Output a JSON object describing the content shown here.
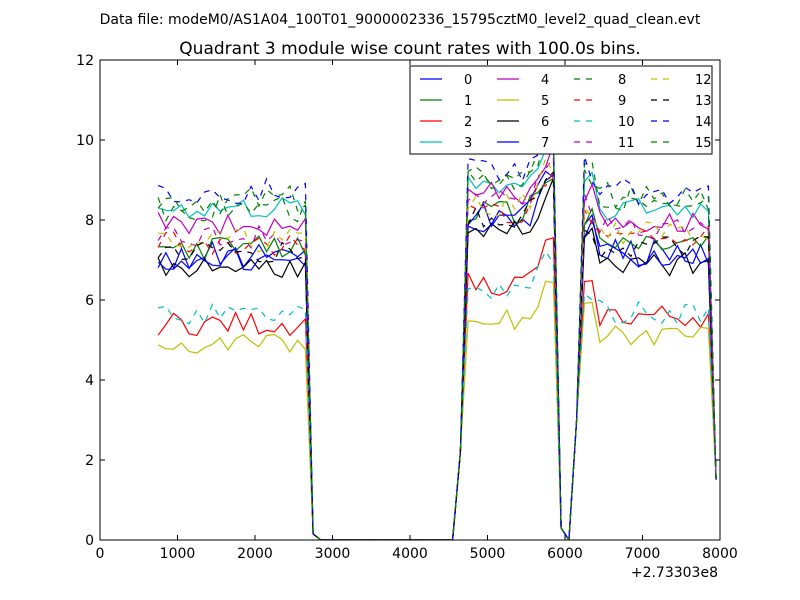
{
  "chart_data": {
    "type": "line",
    "suptitle": "Data file: modeM0/AS1A04_100T01_9000002336_15795cztM0_level2_quad_clean.evt",
    "title": "Quadrant 3 module wise count rates with 100.0s bins.",
    "xlabel": "",
    "ylabel": "",
    "x_offset_label": "+2.73303e8",
    "xlim": [
      0,
      8000
    ],
    "ylim": [
      0,
      12
    ],
    "xticks": [
      "0",
      "1000",
      "2000",
      "3000",
      "4000",
      "5000",
      "6000",
      "7000",
      "8000"
    ],
    "yticks": [
      "0",
      "2",
      "4",
      "6",
      "8",
      "10",
      "12"
    ],
    "legend_position": "top-right",
    "x": [
      750,
      850,
      950,
      1050,
      1150,
      1250,
      1350,
      1450,
      1550,
      1650,
      1750,
      1850,
      1950,
      2050,
      2150,
      2250,
      2350,
      2450,
      2550,
      2650,
      2750,
      2850,
      2950,
      3050,
      3150,
      3250,
      3350,
      3450,
      3550,
      3650,
      3750,
      3850,
      3950,
      4050,
      4150,
      4250,
      4350,
      4450,
      4550,
      4650,
      4750,
      4850,
      4950,
      5050,
      5150,
      5250,
      5350,
      5450,
      5550,
      5650,
      5750,
      5850,
      5950,
      6050,
      6150,
      6250,
      6350,
      6450,
      6550,
      6650,
      6750,
      6850,
      6950,
      7050,
      7150,
      7250,
      7350,
      7450,
      7550,
      7650,
      7750,
      7850,
      7950
    ],
    "series": [
      {
        "name": "0",
        "color": "#0000ff",
        "dash": "solid",
        "base_a": 7.1,
        "base_b": 8.0,
        "base_c": 7.2,
        "amp": 0.35
      },
      {
        "name": "1",
        "color": "#008000",
        "dash": "solid",
        "base_a": 7.3,
        "base_b": 8.2,
        "base_c": 7.4,
        "amp": 0.3
      },
      {
        "name": "2",
        "color": "#ff0000",
        "dash": "solid",
        "base_a": 5.4,
        "base_b": 6.4,
        "base_c": 5.6,
        "amp": 0.3
      },
      {
        "name": "3",
        "color": "#00bfbf",
        "dash": "solid",
        "base_a": 8.3,
        "base_b": 8.9,
        "base_c": 8.3,
        "amp": 0.3
      },
      {
        "name": "4",
        "color": "#bf00bf",
        "dash": "solid",
        "base_a": 7.9,
        "base_b": 8.7,
        "base_c": 8.0,
        "amp": 0.3
      },
      {
        "name": "5",
        "color": "#bfbf00",
        "dash": "solid",
        "base_a": 4.9,
        "base_b": 5.5,
        "base_c": 5.1,
        "amp": 0.25
      },
      {
        "name": "6",
        "color": "#000000",
        "dash": "solid",
        "base_a": 6.8,
        "base_b": 7.8,
        "base_c": 6.9,
        "amp": 0.3
      },
      {
        "name": "7",
        "color": "#0000ff",
        "dash": "solid",
        "base_a": 7.0,
        "base_b": 8.1,
        "base_c": 7.1,
        "amp": 0.3
      },
      {
        "name": "8",
        "color": "#008000",
        "dash": "dashed",
        "base_a": 8.3,
        "base_b": 8.9,
        "base_c": 8.5,
        "amp": 0.35
      },
      {
        "name": "9",
        "color": "#ff0000",
        "dash": "dashed",
        "base_a": 7.4,
        "base_b": 8.2,
        "base_c": 7.6,
        "amp": 0.3
      },
      {
        "name": "10",
        "color": "#00bfbf",
        "dash": "dashed",
        "base_a": 5.6,
        "base_b": 6.2,
        "base_c": 5.7,
        "amp": 0.3
      },
      {
        "name": "11",
        "color": "#bf00bf",
        "dash": "dashed",
        "base_a": 7.6,
        "base_b": 8.5,
        "base_c": 7.8,
        "amp": 0.3
      },
      {
        "name": "12",
        "color": "#bfbf00",
        "dash": "dashed",
        "base_a": 7.5,
        "base_b": 8.4,
        "base_c": 7.7,
        "amp": 0.3
      },
      {
        "name": "13",
        "color": "#000000",
        "dash": "dashed",
        "base_a": 7.2,
        "base_b": 8.1,
        "base_c": 7.3,
        "amp": 0.3
      },
      {
        "name": "14",
        "color": "#0000ff",
        "dash": "dashed",
        "base_a": 8.7,
        "base_b": 9.2,
        "base_c": 8.7,
        "amp": 0.35
      },
      {
        "name": "15",
        "color": "#008000",
        "dash": "dashed",
        "base_a": 8.5,
        "base_b": 9.0,
        "base_c": 8.6,
        "amp": 0.35
      }
    ]
  }
}
